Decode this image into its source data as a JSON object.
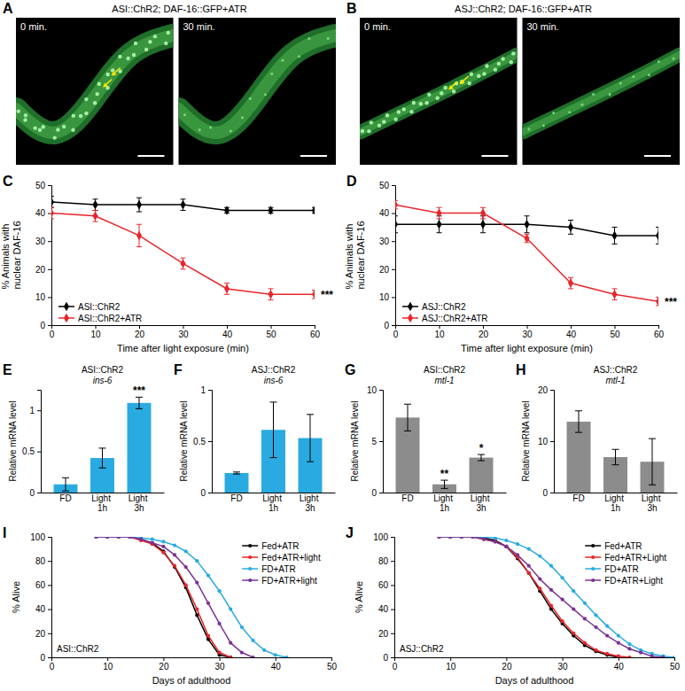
{
  "chart_data": [
    {
      "panel": "A",
      "type": "image",
      "title": "ASI::ChR2; DAF-16::GFP+ATR",
      "frames": [
        "0 min.",
        "30 min."
      ]
    },
    {
      "panel": "B",
      "type": "image",
      "title": "ASJ::ChR2; DAF-16::GFP+ATR",
      "frames": [
        "0 min.",
        "30 min."
      ]
    },
    {
      "panel": "C",
      "type": "line",
      "x": [
        0,
        10,
        20,
        30,
        40,
        50,
        60
      ],
      "xlabel": "Time after light exposure (min)",
      "ylabel": "% Animals with nuclear DAF-16",
      "xlim": [
        0,
        60
      ],
      "ylim": [
        0,
        50
      ],
      "xticks": [
        0,
        10,
        20,
        30,
        40,
        50,
        60
      ],
      "yticks": [
        0,
        10,
        20,
        30,
        40,
        50
      ],
      "legend": "lower left",
      "marker": "diamond",
      "series": [
        {
          "name": "ASI::ChR2",
          "color": "#000000",
          "values": [
            44,
            43,
            43,
            43,
            41,
            41,
            41
          ],
          "errors": [
            2,
            2,
            2.5,
            2,
            1,
            1,
            1
          ]
        },
        {
          "name": "ASI::ChR2+ATR",
          "color": "#e8262b",
          "values": [
            40,
            39,
            32,
            22,
            13,
            11,
            11
          ],
          "errors": [
            2,
            2,
            4,
            2,
            2,
            2,
            1.5
          ]
        }
      ],
      "annotations": [
        {
          "x": 60,
          "text": "***"
        }
      ]
    },
    {
      "panel": "D",
      "type": "line",
      "x": [
        0,
        10,
        20,
        30,
        40,
        50,
        60
      ],
      "xlabel": "Time after light exposure (min)",
      "ylabel": "% Animals with nuclear DAF-16",
      "xlim": [
        0,
        60
      ],
      "ylim": [
        0,
        50
      ],
      "xticks": [
        0,
        10,
        20,
        30,
        40,
        50,
        60
      ],
      "yticks": [
        0,
        10,
        20,
        30,
        40,
        50
      ],
      "legend": "lower left",
      "marker": "diamond",
      "series": [
        {
          "name": "ASJ::ChR2",
          "color": "#000000",
          "values": [
            36,
            36,
            36,
            36,
            35,
            32,
            32
          ],
          "errors": [
            3,
            3,
            3,
            3,
            2.5,
            3,
            3
          ]
        },
        {
          "name": "ASJ::ChR2+ATR",
          "color": "#e8262b",
          "values": [
            43,
            40,
            40,
            31,
            15,
            11,
            8.5
          ],
          "errors": [
            1.5,
            2,
            2,
            1.5,
            2,
            2,
            1.5
          ]
        }
      ],
      "annotations": [
        {
          "x": 60,
          "text": "***"
        }
      ]
    },
    {
      "panel": "E",
      "type": "bar",
      "title": "ASI::ChR2",
      "subtitle": "ins-6",
      "categories": [
        "FD",
        "Light 1h",
        "Light 3h"
      ],
      "values": [
        0.1,
        0.42,
        1.09
      ],
      "errors": [
        0.08,
        0.12,
        0.07
      ],
      "color": "#29abe2",
      "ylabel": "Relative mRNA level",
      "ylim": [
        0,
        1.25
      ],
      "yticks": [
        0,
        0.5,
        1
      ],
      "annotations": [
        {
          "x": "Light 3h",
          "text": "***"
        }
      ]
    },
    {
      "panel": "F",
      "type": "bar",
      "title": "ASJ::ChR2",
      "subtitle": "ins-6",
      "categories": [
        "FD",
        "Light 1h",
        "Light 3h"
      ],
      "values": [
        0.19,
        0.61,
        0.53
      ],
      "errors": [
        0.01,
        0.27,
        0.23
      ],
      "color": "#29abe2",
      "ylabel": "Relative mRNA level",
      "ylim": [
        0,
        1
      ],
      "yticks": [
        0,
        0.5,
        1
      ]
    },
    {
      "panel": "G",
      "type": "bar",
      "title": "ASI::ChR2",
      "subtitle": "mtl-1",
      "categories": [
        "FD",
        "Light 1h",
        "Light 3h"
      ],
      "values": [
        7.3,
        0.8,
        3.4
      ],
      "errors": [
        1.3,
        0.4,
        0.3
      ],
      "color": "#8c8c8c",
      "ylabel": "Relative mRNA level",
      "ylim": [
        0,
        10
      ],
      "yticks": [
        0,
        5,
        10
      ],
      "annotations": [
        {
          "x": "Light 1h",
          "text": "**"
        },
        {
          "x": "Light 3h",
          "text": "*"
        }
      ]
    },
    {
      "panel": "H",
      "type": "bar",
      "title": "ASJ::ChR2",
      "subtitle": "mtl-1",
      "categories": [
        "FD",
        "Light 1h",
        "Light 3h"
      ],
      "values": [
        13.8,
        6.9,
        6.0
      ],
      "errors": [
        2.1,
        1.5,
        4.5
      ],
      "color": "#8c8c8c",
      "ylabel": "Relative mRNA level",
      "ylim": [
        0,
        20
      ],
      "yticks": [
        0,
        10,
        20
      ]
    },
    {
      "panel": "I",
      "type": "line",
      "x": [
        8,
        10,
        12,
        14,
        16,
        18,
        20,
        22,
        24,
        26,
        28,
        30,
        32,
        34,
        36,
        38,
        40,
        42,
        44,
        46,
        48,
        50
      ],
      "xlabel": "Days of adulthood",
      "ylabel": "% Alive",
      "xlim": [
        0,
        50
      ],
      "ylim": [
        0,
        100
      ],
      "xticks": [
        0,
        10,
        20,
        30,
        40,
        50
      ],
      "yticks": [
        0,
        20,
        40,
        60,
        80,
        100
      ],
      "legend": "upper right",
      "marker": "circle",
      "series": [
        {
          "name": "Fed+ATR",
          "color": "#000000",
          "values": [
            100,
            100,
            100,
            100,
            98,
            95,
            88,
            75,
            58,
            35,
            15,
            2,
            0,
            null,
            null,
            null,
            null,
            null,
            null,
            null,
            null,
            null
          ]
        },
        {
          "name": "Fed+ATR+light",
          "color": "#e8262b",
          "values": [
            100,
            100,
            100,
            100,
            97,
            94,
            87,
            76,
            60,
            40,
            18,
            4,
            0,
            null,
            null,
            null,
            null,
            null,
            null,
            null,
            null,
            null
          ]
        },
        {
          "name": "FD+ATR",
          "color": "#29abe2",
          "values": [
            100,
            100,
            100,
            100,
            99,
            98,
            96,
            93,
            88,
            80,
            68,
            55,
            40,
            25,
            14,
            6,
            2,
            0,
            null,
            null,
            null,
            null
          ]
        },
        {
          "name": "FD+ATR+light",
          "color": "#7b3294",
          "values": [
            100,
            100,
            100,
            100,
            98,
            95,
            92,
            85,
            75,
            62,
            45,
            28,
            12,
            4,
            0,
            null,
            null,
            null,
            null,
            null,
            null,
            null
          ]
        }
      ],
      "annotations": [
        {
          "text": "ASI::ChR2"
        }
      ]
    },
    {
      "panel": "J",
      "type": "line",
      "x": [
        8,
        10,
        12,
        14,
        16,
        18,
        20,
        22,
        24,
        26,
        28,
        30,
        32,
        34,
        36,
        38,
        40,
        42,
        44,
        46,
        48,
        50
      ],
      "xlabel": "Days of adulthood",
      "ylabel": "% Alive",
      "xlim": [
        0,
        50
      ],
      "ylim": [
        0,
        100
      ],
      "xticks": [
        0,
        10,
        20,
        30,
        40,
        50
      ],
      "yticks": [
        0,
        20,
        40,
        60,
        80,
        100
      ],
      "legend": "upper right",
      "marker": "circle",
      "series": [
        {
          "name": "Fed+ATR",
          "color": "#000000",
          "values": [
            100,
            100,
            100,
            100,
            99,
            97,
            92,
            82,
            70,
            55,
            40,
            28,
            18,
            10,
            5,
            2,
            0,
            null,
            null,
            null,
            null,
            null
          ]
        },
        {
          "name": "Fed+ATR+Light",
          "color": "#e8262b",
          "values": [
            100,
            100,
            100,
            100,
            98,
            96,
            92,
            83,
            70,
            57,
            43,
            30,
            20,
            12,
            6,
            3,
            1,
            0,
            null,
            null,
            null,
            null
          ]
        },
        {
          "name": "FD+ATR",
          "color": "#29abe2",
          "values": [
            100,
            100,
            100,
            100,
            100,
            99,
            97,
            94,
            90,
            84,
            76,
            66,
            55,
            45,
            35,
            26,
            18,
            11,
            6,
            3,
            1,
            0
          ]
        },
        {
          "name": "FD+ATR+Light",
          "color": "#7b3294",
          "values": [
            100,
            100,
            100,
            100,
            98,
            96,
            92,
            85,
            76,
            65,
            56,
            48,
            40,
            32,
            25,
            18,
            12,
            7,
            4,
            1,
            0,
            null
          ]
        }
      ],
      "annotations": [
        {
          "text": "ASJ::ChR2"
        }
      ]
    }
  ]
}
